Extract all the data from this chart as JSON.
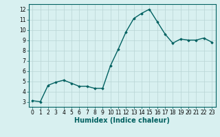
{
  "x": [
    0,
    1,
    2,
    3,
    4,
    5,
    6,
    7,
    8,
    9,
    10,
    11,
    12,
    13,
    14,
    15,
    16,
    17,
    18,
    19,
    20,
    21,
    22,
    23
  ],
  "y": [
    3.1,
    3.0,
    4.6,
    4.9,
    5.1,
    4.8,
    4.5,
    4.5,
    4.3,
    4.3,
    6.5,
    8.1,
    9.8,
    11.1,
    11.6,
    12.0,
    10.8,
    9.6,
    8.7,
    9.1,
    9.0,
    9.0,
    9.2,
    8.8
  ],
  "line_color": "#006060",
  "marker": "D",
  "marker_size": 1.8,
  "xlabel": "Humidex (Indice chaleur)",
  "xlabel_fontsize": 7.0,
  "xlim": [
    -0.5,
    23.5
  ],
  "ylim": [
    2.5,
    12.5
  ],
  "yticks": [
    3,
    4,
    5,
    6,
    7,
    8,
    9,
    10,
    11,
    12
  ],
  "xticks": [
    0,
    1,
    2,
    3,
    4,
    5,
    6,
    7,
    8,
    9,
    10,
    11,
    12,
    13,
    14,
    15,
    16,
    17,
    18,
    19,
    20,
    21,
    22,
    23
  ],
  "bg_color": "#d8f0f0",
  "grid_color": "#b8d4d4",
  "tick_fontsize": 5.5,
  "line_width": 1.0
}
